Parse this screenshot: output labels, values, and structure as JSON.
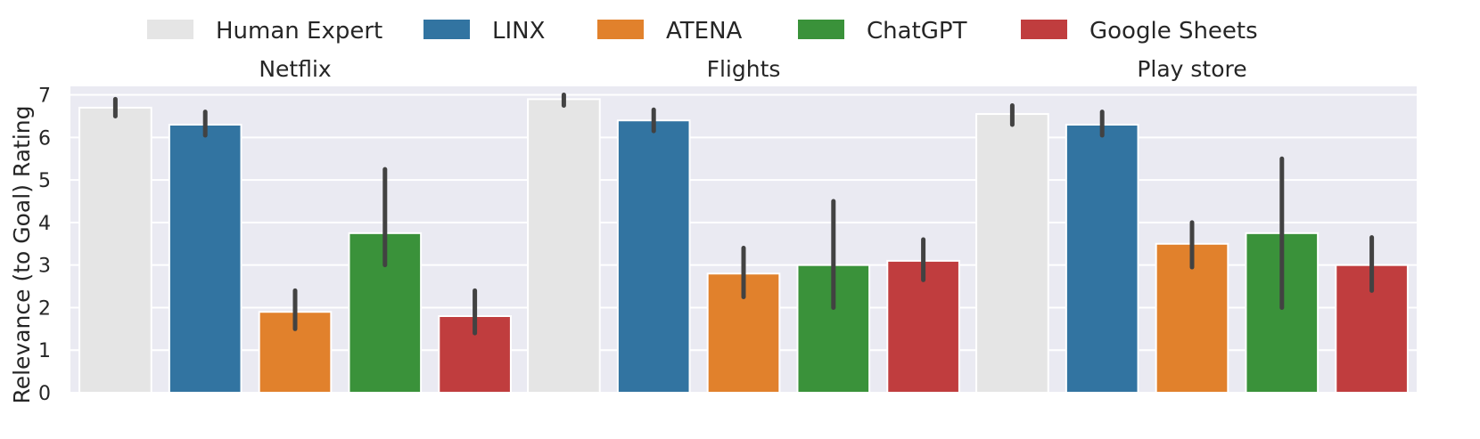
{
  "chart_data": {
    "type": "bar",
    "ylabel": "Relevance (to Goal) Rating",
    "ylim": [
      0,
      7.2
    ],
    "yticks": [
      "0",
      "1",
      "2",
      "3",
      "4",
      "5",
      "6",
      "7"
    ],
    "grid": true,
    "legend_position": "top",
    "series": [
      {
        "name": "Human Expert",
        "color": "#e5e5e5"
      },
      {
        "name": "LINX",
        "color": "#3274a1"
      },
      {
        "name": "ATENA",
        "color": "#e1812c"
      },
      {
        "name": "ChatGPT",
        "color": "#3a923a"
      },
      {
        "name": "Google Sheets",
        "color": "#c03d3e"
      }
    ],
    "panels": [
      {
        "title": "Netflix",
        "values": [
          6.7,
          6.3,
          1.9,
          3.75,
          1.8
        ],
        "errors": [
          [
            6.5,
            6.9
          ],
          [
            6.05,
            6.6
          ],
          [
            1.5,
            2.4
          ],
          [
            3.0,
            5.25
          ],
          [
            1.4,
            2.4
          ]
        ]
      },
      {
        "title": "Flights",
        "values": [
          6.9,
          6.4,
          2.8,
          3.0,
          3.1
        ],
        "errors": [
          [
            6.75,
            7.0
          ],
          [
            6.15,
            6.65
          ],
          [
            2.25,
            3.4
          ],
          [
            2.0,
            4.5
          ],
          [
            2.65,
            3.6
          ]
        ]
      },
      {
        "title": "Play store",
        "values": [
          6.55,
          6.3,
          3.5,
          3.75,
          3.0
        ],
        "errors": [
          [
            6.3,
            6.75
          ],
          [
            6.05,
            6.6
          ],
          [
            2.95,
            4.0
          ],
          [
            2.0,
            5.5
          ],
          [
            2.4,
            3.65
          ]
        ]
      }
    ]
  }
}
